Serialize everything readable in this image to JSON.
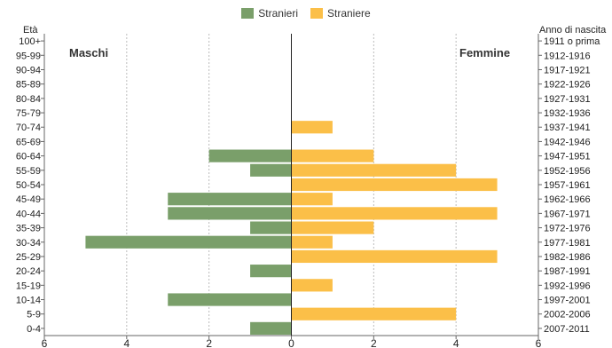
{
  "chart_data": {
    "type": "bar",
    "subtype": "population-pyramid",
    "left_axis_title": "Età",
    "right_axis_title": "Anno di nascita",
    "left_title": "Maschi",
    "right_title": "Femmine",
    "age_groups": [
      "100+",
      "95-99",
      "90-94",
      "85-89",
      "80-84",
      "75-79",
      "70-74",
      "65-69",
      "60-64",
      "55-59",
      "50-54",
      "45-49",
      "40-44",
      "35-39",
      "30-34",
      "25-29",
      "20-24",
      "15-19",
      "10-14",
      "5-9",
      "0-4"
    ],
    "birth_years": [
      "1911 o prima",
      "1912-1916",
      "1917-1921",
      "1922-1926",
      "1927-1931",
      "1932-1936",
      "1937-1941",
      "1942-1946",
      "1947-1951",
      "1952-1956",
      "1957-1961",
      "1962-1966",
      "1967-1971",
      "1972-1976",
      "1977-1981",
      "1982-1986",
      "1987-1991",
      "1992-1996",
      "1997-2001",
      "2002-2006",
      "2007-2011"
    ],
    "series": [
      {
        "name": "Stranieri",
        "color": "#7a9f6a",
        "side": "left",
        "values": [
          0,
          0,
          0,
          0,
          0,
          0,
          0,
          0,
          2,
          1,
          0,
          3,
          3,
          1,
          5,
          0,
          1,
          0,
          3,
          0,
          1
        ]
      },
      {
        "name": "Straniere",
        "color": "#fbbf48",
        "side": "right",
        "values": [
          0,
          0,
          0,
          0,
          0,
          0,
          1,
          0,
          2,
          4,
          5,
          1,
          5,
          2,
          1,
          5,
          0,
          1,
          0,
          4,
          0
        ]
      }
    ],
    "xlim": [
      -6,
      6
    ],
    "x_ticks": [
      6,
      4,
      2,
      0,
      2,
      4,
      6
    ],
    "grid": true,
    "legend": "top-center"
  }
}
